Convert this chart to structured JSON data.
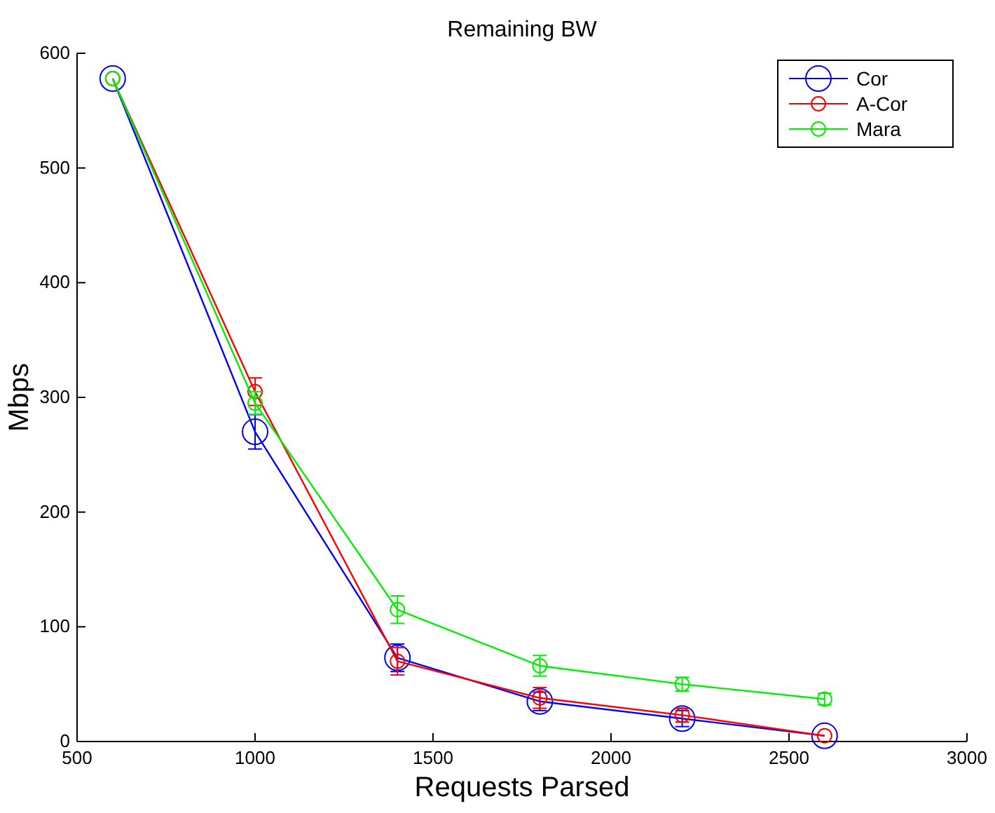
{
  "chart_data": {
    "type": "line",
    "title": "Remaining BW",
    "xlabel": "Requests Parsed",
    "ylabel": "Mbps",
    "x": [
      600,
      1000,
      1400,
      1800,
      2200,
      2600
    ],
    "series": [
      {
        "name": "Cor",
        "color": "#0000ff",
        "values": [
          578,
          270,
          73,
          35,
          20,
          5
        ],
        "errors": [
          null,
          15,
          12,
          8,
          7,
          null
        ]
      },
      {
        "name": "A-Cor",
        "color": "#ff0000",
        "values": [
          578,
          305,
          70,
          38,
          23,
          5
        ],
        "errors": [
          null,
          12,
          12,
          9,
          6,
          null
        ]
      },
      {
        "name": "Mara",
        "color": "#00ee00",
        "values": [
          578,
          295,
          115,
          66,
          50,
          37
        ],
        "errors": [
          null,
          10,
          12,
          9,
          6,
          5
        ]
      }
    ],
    "xlim": [
      500,
      3000
    ],
    "xticks": [
      500,
      1000,
      1500,
      2000,
      2500,
      3000
    ],
    "ylim": [
      0,
      600
    ],
    "yticks": [
      0,
      100,
      200,
      300,
      400,
      500,
      600
    ],
    "grid": false,
    "legend": "top right",
    "marker": "circle",
    "line_style": "solid"
  }
}
